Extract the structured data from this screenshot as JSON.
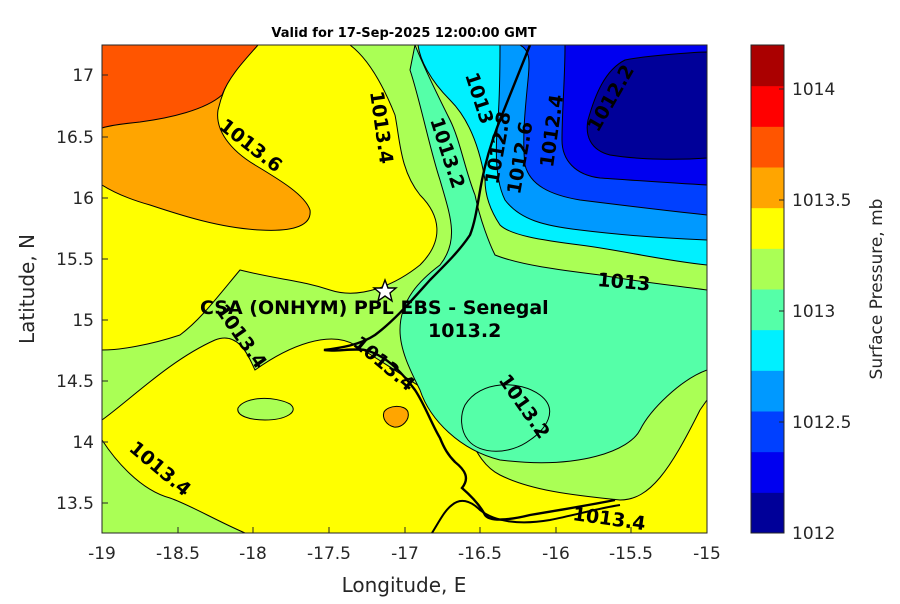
{
  "title": "Valid for 17-Sep-2025 12:00:00 GMT",
  "axes": {
    "xlabel": "Longitude, E",
    "ylabel": "Latitude, N",
    "xticks": [
      "-19",
      "-18.5",
      "-18",
      "-17.5",
      "-17",
      "-16.5",
      "-16",
      "-15.5",
      "-15"
    ],
    "yticks": [
      "17",
      "16.5",
      "16",
      "15.5",
      "15",
      "14.5",
      "14",
      "13.5"
    ]
  },
  "colorbar": {
    "label": "Surface Pressure, mb",
    "ticks": [
      "1014",
      "1013.5",
      "1013",
      "1012.5",
      "1012"
    ],
    "colors": [
      "#000099",
      "#0000f0",
      "#0040ff",
      "#0099ff",
      "#00f0ff",
      "#55ffa8",
      "#aaff55",
      "#ffff00",
      "#ffa500",
      "#ff5500",
      "#ff0000",
      "#aa0000"
    ]
  },
  "site_label": "CSA (ONHYM) PPL EBS  - Senegal",
  "contour_labels": {
    "c1": "1013.6",
    "c2": "1013.4",
    "c3": "1013.2",
    "c4": "1013",
    "c5": "1012.8",
    "c6": "1012.6",
    "c7": "1012.4",
    "c8": "1012.2",
    "c9": "1013",
    "c10": "1013.4",
    "c11": "1013.2",
    "c12": "1013.4",
    "c13": "1013.2",
    "c14": "1013.4",
    "c15": "1013.4"
  },
  "chart_data": {
    "type": "heatmap",
    "title": "Valid for 17-Sep-2025 12:00:00 GMT",
    "xlabel": "Longitude, E",
    "ylabel": "Latitude, N",
    "xlim": [
      -19,
      -15
    ],
    "ylim": [
      13.25,
      17.25
    ],
    "colorbar_label": "Surface Pressure, mb",
    "colorbar_range": [
      1012,
      1014.2
    ],
    "contour_levels": [
      1012.2,
      1012.4,
      1012.6,
      1012.8,
      1013,
      1013.2,
      1013.4,
      1013.6
    ],
    "marker": {
      "label": "CSA (ONHYM) PPL EBS  - Senegal",
      "lon": -17.12,
      "lat": 15.23
    }
  }
}
